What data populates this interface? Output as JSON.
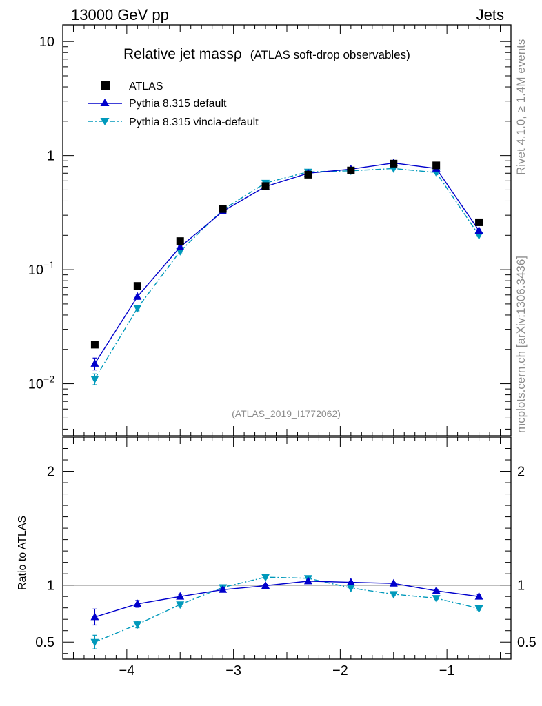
{
  "header": {
    "energy": "13000 GeV pp",
    "process": "Jets",
    "rivet_label": "Rivet 4.1.0, ≥ 1.4M events",
    "site_label": "mcplots.cern.ch [arXiv:1306.3436]"
  },
  "chart_data": {
    "type": "line",
    "title_main": "Relative jet mass",
    "title_symbol": "ρ",
    "title_sub": "(ATLAS soft-drop observables)",
    "analysis_id": "(ATLAS_2019_I1772062)",
    "ylabel_ratio": "Ratio to ATLAS",
    "yscale_main": "log",
    "ylim_main": [
      0.0035,
      14
    ],
    "ylim_ratio": [
      0.35,
      2.3
    ],
    "xlim": [
      -4.6,
      -0.4
    ],
    "x_ticks": [
      "−4",
      "−3",
      "−2",
      "−1"
    ],
    "x_tick_values": [
      -4,
      -3,
      -2,
      -1
    ],
    "y_ticks_main": [
      {
        "value": 10,
        "base": "10",
        "exp": ""
      },
      {
        "value": 1,
        "base": "1",
        "exp": ""
      },
      {
        "value": 0.1,
        "base": "10",
        "exp": "−1"
      },
      {
        "value": 0.01,
        "base": "10",
        "exp": "−2"
      }
    ],
    "y_ticks_ratio": [
      {
        "value": 2,
        "label": "2"
      },
      {
        "value": 1,
        "label": "1"
      },
      {
        "value": 0.5,
        "label": "0.5"
      }
    ],
    "x": [
      -4.3,
      -3.9,
      -3.5,
      -3.1,
      -2.7,
      -2.3,
      -1.9,
      -1.5,
      -1.1,
      -0.7
    ],
    "legend": [
      "ATLAS",
      "Pythia 8.315 default",
      "Pythia 8.315 vincia-default"
    ],
    "series": [
      {
        "name": "ATLAS",
        "color": "#000000",
        "marker": "square",
        "style": "none",
        "values": [
          0.022,
          0.072,
          0.178,
          0.34,
          0.54,
          0.68,
          0.74,
          0.85,
          0.82,
          0.26
        ]
      },
      {
        "name": "Pythia 8.315 default",
        "color": "#0000cc",
        "marker": "triangle-up",
        "style": "solid",
        "values": [
          0.015,
          0.058,
          0.158,
          0.325,
          0.535,
          0.7,
          0.76,
          0.86,
          0.77,
          0.22
        ],
        "err": [
          0.0018,
          0.003,
          0.005,
          0.006,
          0.008,
          0.01,
          0.01,
          0.01,
          0.01,
          0.006
        ],
        "ratio": [
          0.72,
          0.835,
          0.9,
          0.96,
          0.995,
          1.035,
          1.025,
          1.015,
          0.95,
          0.9
        ],
        "ratio_err": [
          0.07,
          0.03,
          0.02,
          0.015,
          0.012,
          0.01,
          0.01,
          0.01,
          0.01,
          0.015
        ]
      },
      {
        "name": "Pythia 8.315 vincia-default",
        "color": "#0099bb",
        "marker": "triangle-down",
        "style": "dashdot",
        "values": [
          0.011,
          0.046,
          0.145,
          0.335,
          0.575,
          0.72,
          0.735,
          0.77,
          0.71,
          0.2
        ],
        "err": [
          0.0012,
          0.0025,
          0.005,
          0.006,
          0.008,
          0.01,
          0.01,
          0.01,
          0.01,
          0.005
        ],
        "ratio": [
          0.5,
          0.655,
          0.83,
          0.98,
          1.07,
          1.06,
          0.975,
          0.92,
          0.885,
          0.795
        ],
        "ratio_err": [
          0.06,
          0.03,
          0.02,
          0.015,
          0.012,
          0.01,
          0.01,
          0.01,
          0.01,
          0.015
        ]
      }
    ]
  }
}
